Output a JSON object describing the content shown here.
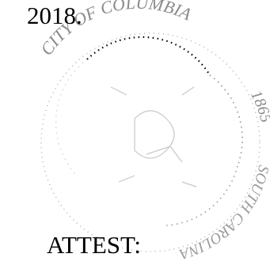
{
  "document": {
    "year_line": "2018.",
    "attest_label": "ATTEST:"
  },
  "seal": {
    "description_icon": "embossed-seal-icon",
    "text_top": "CITY OF COLUMBIA",
    "text_right": "1865",
    "text_bottom": "SOUTH CAROLINA",
    "ink_color": "#8a8a8a"
  }
}
